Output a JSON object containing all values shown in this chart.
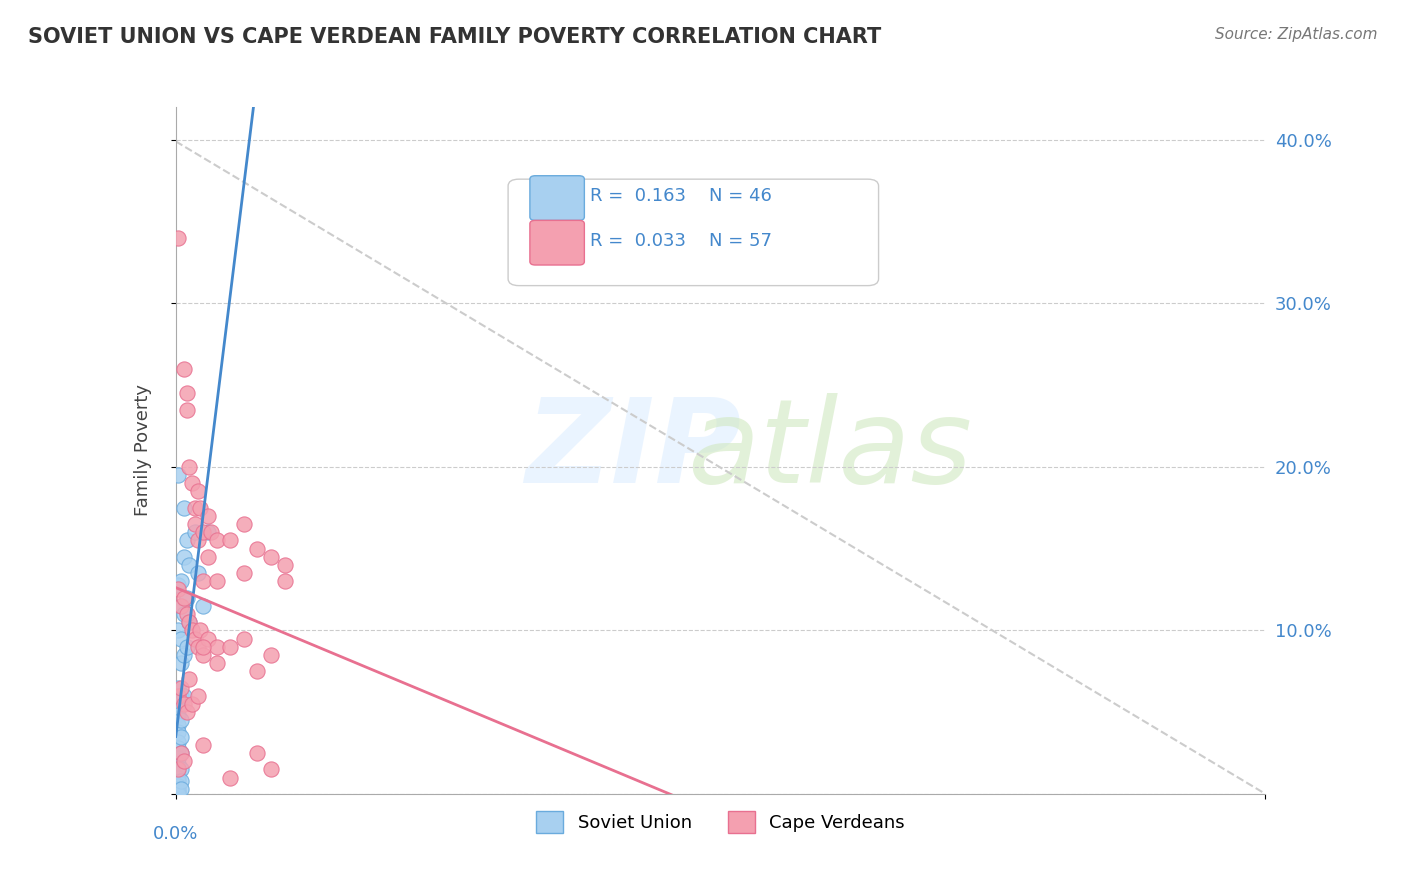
{
  "title": "SOVIET UNION VS CAPE VERDEAN FAMILY POVERTY CORRELATION CHART",
  "source": "Source: ZipAtlas.com",
  "ylabel": "Family Poverty",
  "xmin": 0.0,
  "xmax": 0.4,
  "ymin": 0.0,
  "ymax": 0.42,
  "yticks": [
    0.0,
    0.1,
    0.2,
    0.3,
    0.4
  ],
  "ytick_labels": [
    "",
    "10.0%",
    "20.0%",
    "30.0%",
    "40.0%"
  ],
  "legend_soviet_R": "0.163",
  "legend_soviet_N": "46",
  "legend_cape_R": "0.033",
  "legend_cape_N": "57",
  "soviet_color": "#a8d0f0",
  "cape_color": "#f4a0b0",
  "soviet_edge": "#6aabdd",
  "cape_edge": "#e87090",
  "trendline_soviet_color": "#4488cc",
  "trendline_cape_color": "#e87090",
  "diag_color": "#cccccc",
  "soviet_points": [
    [
      0.001,
      0.195
    ],
    [
      0.001,
      0.128
    ],
    [
      0.001,
      0.1
    ],
    [
      0.001,
      0.065
    ],
    [
      0.001,
      0.055
    ],
    [
      0.001,
      0.048
    ],
    [
      0.001,
      0.042
    ],
    [
      0.001,
      0.038
    ],
    [
      0.001,
      0.032
    ],
    [
      0.001,
      0.028
    ],
    [
      0.001,
      0.022
    ],
    [
      0.001,
      0.018
    ],
    [
      0.001,
      0.015
    ],
    [
      0.001,
      0.012
    ],
    [
      0.001,
      0.01
    ],
    [
      0.001,
      0.008
    ],
    [
      0.001,
      0.005
    ],
    [
      0.001,
      0.003
    ],
    [
      0.001,
      0.002
    ],
    [
      0.001,
      0.001
    ],
    [
      0.001,
      0.0
    ],
    [
      0.002,
      0.13
    ],
    [
      0.002,
      0.115
    ],
    [
      0.002,
      0.095
    ],
    [
      0.002,
      0.08
    ],
    [
      0.002,
      0.06
    ],
    [
      0.002,
      0.045
    ],
    [
      0.002,
      0.035
    ],
    [
      0.002,
      0.025
    ],
    [
      0.002,
      0.015
    ],
    [
      0.002,
      0.008
    ],
    [
      0.002,
      0.003
    ],
    [
      0.003,
      0.175
    ],
    [
      0.003,
      0.145
    ],
    [
      0.003,
      0.11
    ],
    [
      0.003,
      0.085
    ],
    [
      0.003,
      0.06
    ],
    [
      0.004,
      0.155
    ],
    [
      0.004,
      0.12
    ],
    [
      0.004,
      0.09
    ],
    [
      0.005,
      0.14
    ],
    [
      0.005,
      0.105
    ],
    [
      0.007,
      0.16
    ],
    [
      0.008,
      0.135
    ],
    [
      0.01,
      0.115
    ],
    [
      0.012,
      0.16
    ]
  ],
  "cape_points": [
    [
      0.001,
      0.34
    ],
    [
      0.003,
      0.26
    ],
    [
      0.004,
      0.245
    ],
    [
      0.004,
      0.235
    ],
    [
      0.005,
      0.2
    ],
    [
      0.006,
      0.19
    ],
    [
      0.007,
      0.175
    ],
    [
      0.007,
      0.165
    ],
    [
      0.008,
      0.185
    ],
    [
      0.008,
      0.155
    ],
    [
      0.009,
      0.175
    ],
    [
      0.01,
      0.16
    ],
    [
      0.01,
      0.13
    ],
    [
      0.012,
      0.17
    ],
    [
      0.012,
      0.145
    ],
    [
      0.013,
      0.16
    ],
    [
      0.015,
      0.155
    ],
    [
      0.015,
      0.13
    ],
    [
      0.02,
      0.155
    ],
    [
      0.025,
      0.165
    ],
    [
      0.025,
      0.135
    ],
    [
      0.03,
      0.15
    ],
    [
      0.035,
      0.145
    ],
    [
      0.04,
      0.14
    ],
    [
      0.001,
      0.125
    ],
    [
      0.002,
      0.115
    ],
    [
      0.003,
      0.12
    ],
    [
      0.004,
      0.11
    ],
    [
      0.005,
      0.105
    ],
    [
      0.006,
      0.1
    ],
    [
      0.007,
      0.095
    ],
    [
      0.008,
      0.09
    ],
    [
      0.009,
      0.1
    ],
    [
      0.01,
      0.085
    ],
    [
      0.012,
      0.095
    ],
    [
      0.015,
      0.09
    ],
    [
      0.001,
      0.06
    ],
    [
      0.002,
      0.065
    ],
    [
      0.003,
      0.055
    ],
    [
      0.004,
      0.05
    ],
    [
      0.005,
      0.07
    ],
    [
      0.006,
      0.055
    ],
    [
      0.008,
      0.06
    ],
    [
      0.01,
      0.09
    ],
    [
      0.015,
      0.08
    ],
    [
      0.02,
      0.09
    ],
    [
      0.025,
      0.095
    ],
    [
      0.03,
      0.075
    ],
    [
      0.035,
      0.085
    ],
    [
      0.04,
      0.13
    ],
    [
      0.001,
      0.015
    ],
    [
      0.002,
      0.025
    ],
    [
      0.003,
      0.02
    ],
    [
      0.01,
      0.03
    ],
    [
      0.02,
      0.01
    ],
    [
      0.03,
      0.025
    ],
    [
      0.035,
      0.015
    ]
  ]
}
